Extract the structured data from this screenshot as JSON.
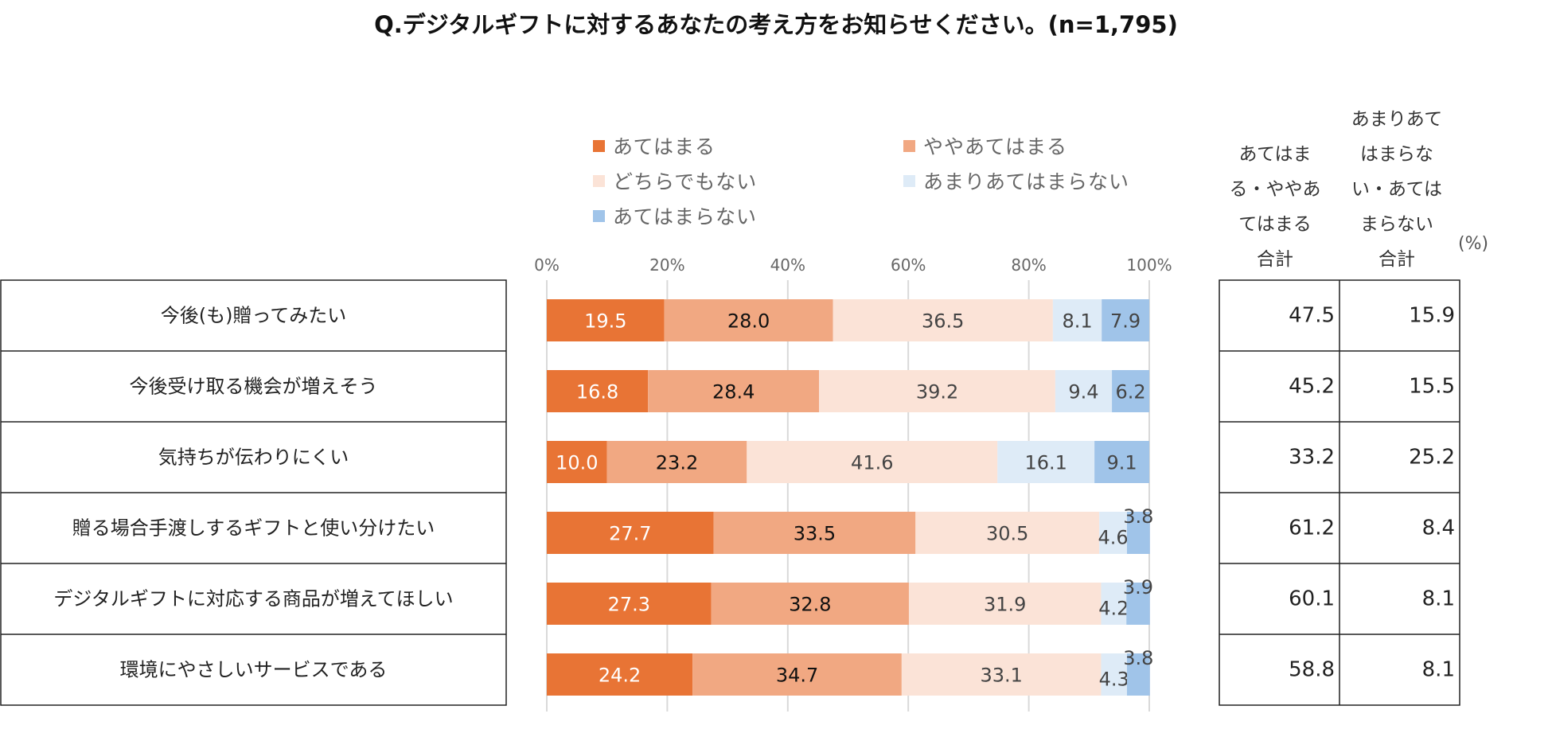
{
  "title": "Q.デジタルギフトに対するあなたの考え方をお知らせください。(n=1,795)",
  "unit_label": "(%)",
  "legend": [
    {
      "label": "あてはまる",
      "color": "#E87435"
    },
    {
      "label": "ややあてはまる",
      "color": "#F1A882"
    },
    {
      "label": "どちらでもない",
      "color": "#FBE3D7"
    },
    {
      "label": "あまりあてはまらない",
      "color": "#DEEBF7"
    },
    {
      "label": "あてはまらない",
      "color": "#A0C4E9"
    }
  ],
  "summary_headers": {
    "agree": [
      "あてはま",
      "る・ややあ",
      "てはまる",
      "合計"
    ],
    "disagree": [
      "あまりあて",
      "はまらな",
      "い・あては",
      "まらない",
      "合計"
    ]
  },
  "chart_data": {
    "type": "bar",
    "orientation": "horizontal-stacked-100",
    "title": "Q.デジタルギフトに対するあなたの考え方をお知らせください。(n=1,795)",
    "xlim": [
      0,
      100
    ],
    "x_ticks": [
      "0%",
      "20%",
      "40%",
      "60%",
      "80%",
      "100%"
    ],
    "categories": [
      "今後(も)贈ってみたい",
      "今後受け取る機会が増えそう",
      "気持ちが伝わりにくい",
      "贈る場合手渡しするギフトと使い分けたい",
      "デジタルギフトに対応する商品が増えてほしい",
      "環境にやさしいサービスである"
    ],
    "series": [
      {
        "name": "あてはまる",
        "values": [
          19.5,
          16.8,
          10.0,
          27.7,
          27.3,
          24.2
        ]
      },
      {
        "name": "ややあてはまる",
        "values": [
          28.0,
          28.4,
          23.2,
          33.5,
          32.8,
          34.7
        ]
      },
      {
        "name": "どちらでもない",
        "values": [
          36.5,
          39.2,
          41.6,
          30.5,
          31.9,
          33.1
        ]
      },
      {
        "name": "あまりあてはまらない",
        "values": [
          8.1,
          9.4,
          16.1,
          4.6,
          4.2,
          4.3
        ]
      },
      {
        "name": "あてはまらない",
        "values": [
          7.9,
          6.2,
          9.1,
          3.8,
          3.9,
          3.8
        ]
      }
    ],
    "summary": {
      "agree_total": [
        "47.5",
        "45.2",
        "33.2",
        "61.2",
        "60.1",
        "58.8"
      ],
      "disagree_total": [
        "15.9",
        "15.5",
        "25.2",
        "8.4",
        "8.1",
        "8.1"
      ]
    }
  }
}
